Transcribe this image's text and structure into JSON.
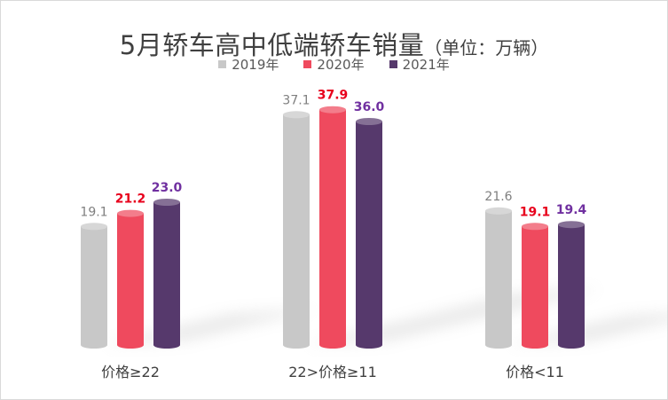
{
  "chart_data": {
    "type": "bar",
    "title": "5月轿车高中低端轿车销量",
    "unit": "（单位：万辆）",
    "categories": [
      "价格≥22",
      "22>价格≥11",
      "价格<11"
    ],
    "series": [
      {
        "name": "2019年",
        "values": [
          19.1,
          37.1,
          21.6
        ],
        "color": "#c8c8c8",
        "label_color": "#7f7f7f"
      },
      {
        "name": "2020年",
        "values": [
          21.2,
          37.9,
          19.1
        ],
        "color": "#ef4a5e",
        "label_color": "#e8001c"
      },
      {
        "name": "2021年",
        "values": [
          23.0,
          36.0,
          19.4
        ],
        "color": "#56396c",
        "label_color": "#7030a0"
      }
    ],
    "ylim": [
      0,
      40
    ],
    "legend_position": "top",
    "grid": false
  }
}
